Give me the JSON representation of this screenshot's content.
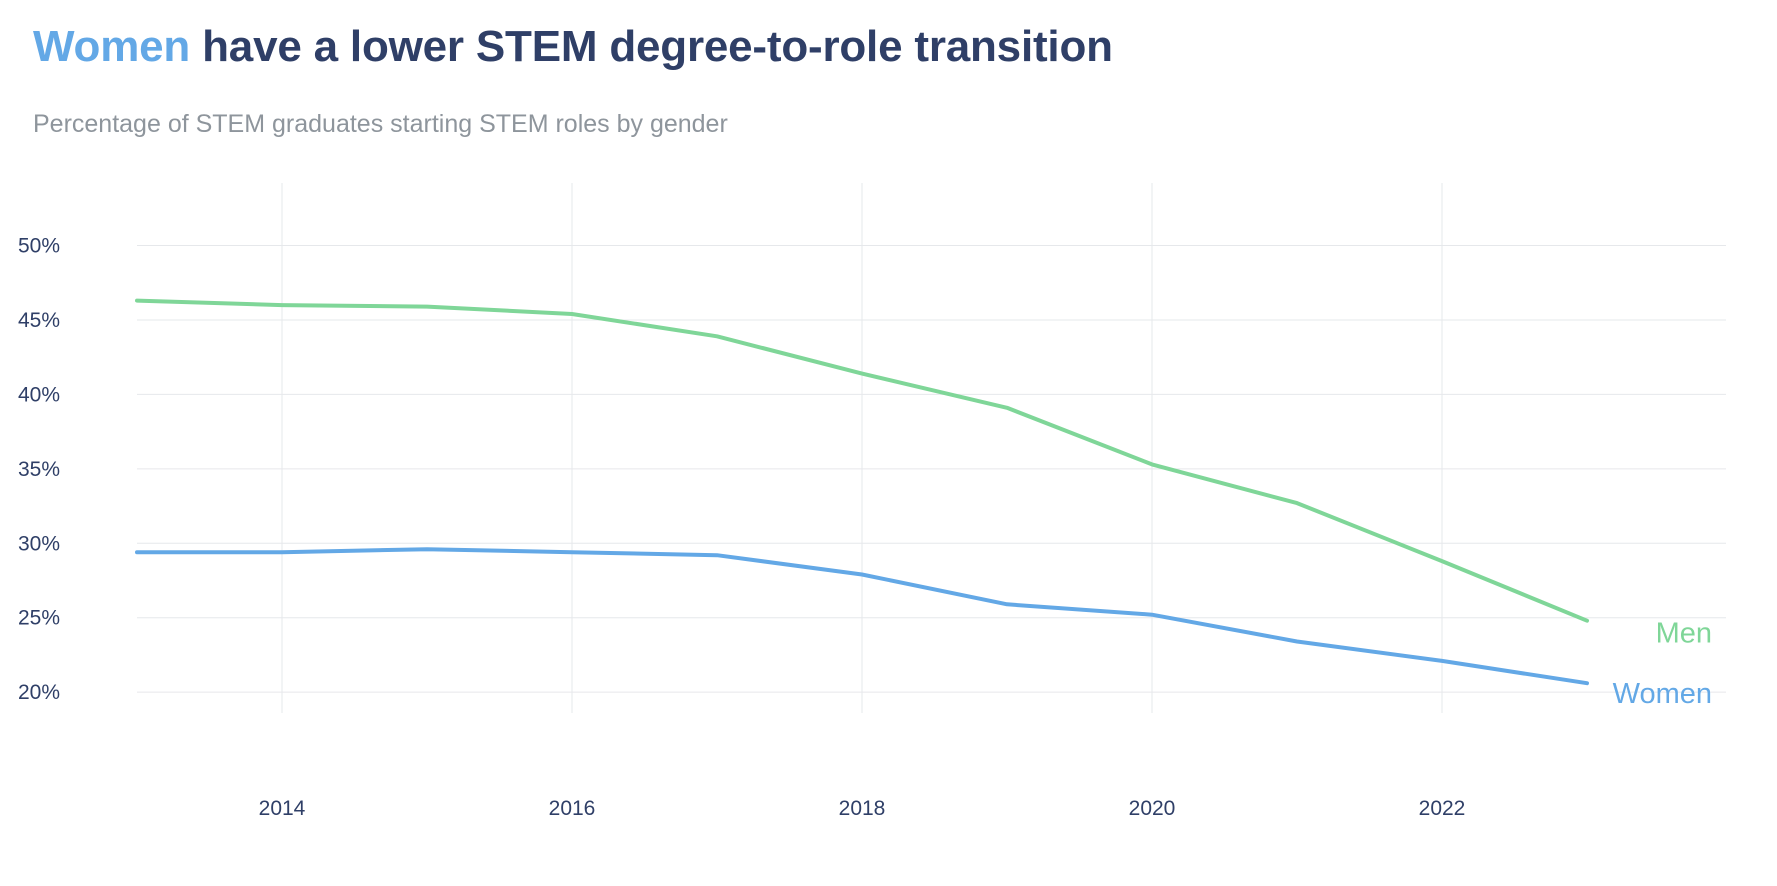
{
  "header": {
    "title_highlight": "Women",
    "title_rest": " have a lower STEM degree-to-role transition",
    "subtitle": "Percentage of STEM graduates starting STEM roles by gender"
  },
  "colors": {
    "women": "#63a8e6",
    "men": "#7fd698",
    "text": "#2f3f67",
    "subtitle": "#8e959c",
    "grid": "#e6e8eb"
  },
  "chart_data": {
    "type": "line",
    "title": "Women have a lower STEM degree-to-role transition",
    "subtitle": "Percentage of STEM graduates starting STEM roles by gender",
    "xlabel": "",
    "ylabel": "",
    "x": [
      2013,
      2014,
      2015,
      2016,
      2017,
      2018,
      2019,
      2020,
      2021,
      2022,
      2023
    ],
    "xticks": [
      2014,
      2016,
      2018,
      2020,
      2022
    ],
    "xlim": [
      2013,
      2024
    ],
    "yticks": [
      20,
      25,
      30,
      35,
      40,
      45,
      50
    ],
    "ytick_labels": [
      "20%",
      "25%",
      "30%",
      "35%",
      "40%",
      "45%",
      "50%"
    ],
    "ylim": [
      18.6,
      54.2
    ],
    "grid": true,
    "legend": "direct labels at line ends",
    "series": [
      {
        "name": "Men",
        "color": "#7fd698",
        "values": [
          46.3,
          46.0,
          45.9,
          45.4,
          43.9,
          41.4,
          39.1,
          35.3,
          32.7,
          28.8,
          24.8
        ]
      },
      {
        "name": "Women",
        "color": "#63a8e6",
        "values": [
          29.4,
          29.4,
          29.6,
          29.4,
          29.2,
          27.9,
          25.9,
          25.2,
          23.4,
          22.1,
          20.6
        ]
      }
    ]
  }
}
